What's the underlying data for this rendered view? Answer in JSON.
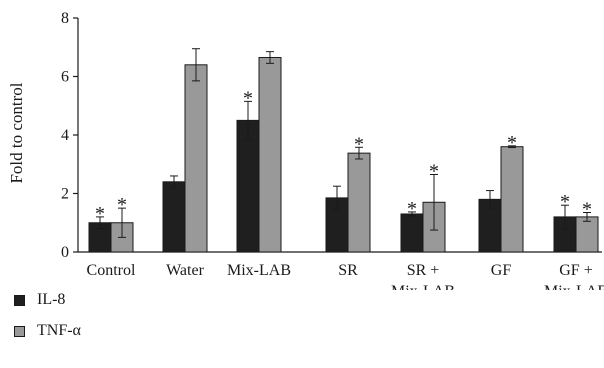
{
  "chart_data": {
    "type": "bar",
    "ylabel": "Fold to control",
    "ylim": [
      0,
      8
    ],
    "yticks": [
      0,
      2,
      4,
      6,
      8
    ],
    "categories": [
      [
        "Control"
      ],
      [
        "Water"
      ],
      [
        "Mix-LAB"
      ],
      [
        "SR"
      ],
      [
        "SR +",
        "Mix-LAB"
      ],
      [
        "GF"
      ],
      [
        "GF +",
        "Mix-LAB"
      ]
    ],
    "series": [
      {
        "name": "IL-8",
        "color": "#1f1f1f",
        "values": [
          1.0,
          2.4,
          4.5,
          1.85,
          1.3,
          1.8,
          1.2
        ],
        "errors": [
          0.2,
          0.2,
          0.65,
          0.4,
          0.07,
          0.3,
          0.4
        ],
        "significant": [
          true,
          false,
          true,
          false,
          true,
          false,
          true
        ]
      },
      {
        "name": "TNF-α",
        "color": "#999999",
        "values": [
          1.0,
          6.4,
          6.65,
          3.38,
          1.7,
          3.6,
          1.2
        ],
        "errors": [
          0.5,
          0.55,
          0.2,
          0.2,
          0.95,
          0.03,
          0.15
        ],
        "significant": [
          true,
          false,
          false,
          true,
          true,
          true,
          true
        ]
      }
    ],
    "annotation_symbol": "*",
    "grid": false,
    "legend_position": "bottom-left"
  }
}
